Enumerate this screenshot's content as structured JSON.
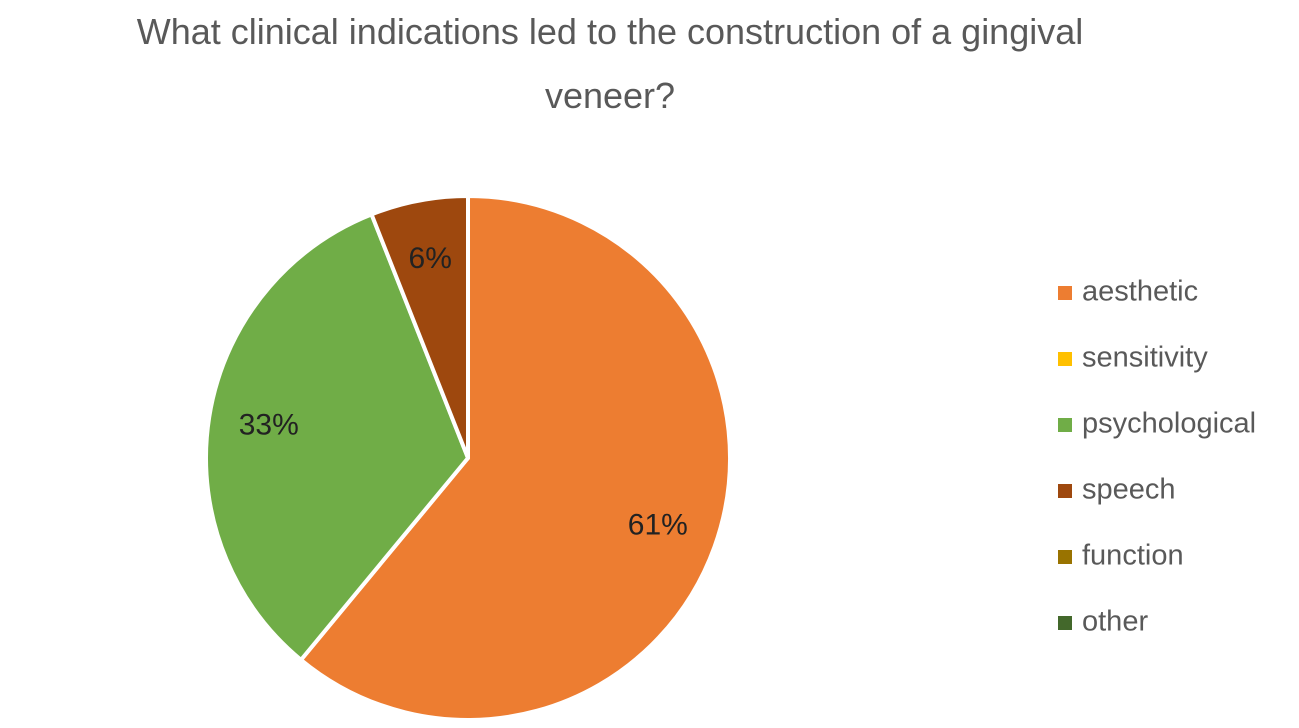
{
  "chart_data": {
    "type": "pie",
    "title": "What clinical indications led to the construction of a gingival veneer?",
    "categories": [
      "aesthetic",
      "sensitivity",
      "psychological",
      "speech",
      "function",
      "other"
    ],
    "values": [
      61,
      0,
      33,
      6,
      0,
      0
    ],
    "value_labels": [
      "61%",
      null,
      "33%",
      "6%",
      null,
      null
    ],
    "colors": [
      "#ED7D31",
      "#FFC000",
      "#70AD47",
      "#9E480E",
      "#997300",
      "#43682B"
    ],
    "legend": "right"
  }
}
